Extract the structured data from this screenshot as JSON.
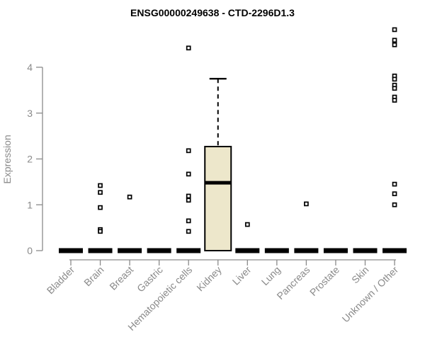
{
  "chart_data": {
    "type": "boxplot",
    "title": "ENSG00000249638 - CTD-2296D1.3",
    "ylabel": "Expression",
    "xlabel": "",
    "yticks": [
      0,
      1,
      2,
      3,
      4
    ],
    "ylim": [
      0,
      5.0
    ],
    "grid": false,
    "legend": null,
    "categories": [
      "Bladder",
      "Brain",
      "Breast",
      "Gastric",
      "Hematopoietic cells",
      "Kidney",
      "Liver",
      "Lung",
      "Pancreas",
      "Prostate",
      "Skin",
      "Unknown / Other"
    ],
    "series": [
      {
        "category": "Bladder",
        "median": 0,
        "q1": 0,
        "q3": 0,
        "whisker_low": 0,
        "whisker_high": 0,
        "outliers": []
      },
      {
        "category": "Brain",
        "median": 0,
        "q1": 0,
        "q3": 0,
        "whisker_low": 0,
        "whisker_high": 0,
        "outliers": [
          1.42,
          1.27,
          0.94,
          0.46,
          0.42
        ]
      },
      {
        "category": "Breast",
        "median": 0,
        "q1": 0,
        "q3": 0,
        "whisker_low": 0,
        "whisker_high": 0,
        "outliers": [
          1.17
        ]
      },
      {
        "category": "Gastric",
        "median": 0,
        "q1": 0,
        "q3": 0,
        "whisker_low": 0,
        "whisker_high": 0,
        "outliers": []
      },
      {
        "category": "Hematopoietic cells",
        "median": 0,
        "q1": 0,
        "q3": 0,
        "whisker_low": 0,
        "whisker_high": 0,
        "outliers": [
          4.42,
          2.18,
          1.67,
          1.19,
          1.1,
          0.65,
          0.42
        ]
      },
      {
        "category": "Kidney",
        "median": 1.48,
        "q1": 0,
        "q3": 2.27,
        "whisker_low": 0,
        "whisker_high": 3.75,
        "outliers": []
      },
      {
        "category": "Liver",
        "median": 0,
        "q1": 0,
        "q3": 0,
        "whisker_low": 0,
        "whisker_high": 0,
        "outliers": [
          0.57
        ]
      },
      {
        "category": "Lung",
        "median": 0,
        "q1": 0,
        "q3": 0,
        "whisker_low": 0,
        "whisker_high": 0,
        "outliers": []
      },
      {
        "category": "Pancreas",
        "median": 0,
        "q1": 0,
        "q3": 0,
        "whisker_low": 0,
        "whisker_high": 0,
        "outliers": [
          1.02
        ]
      },
      {
        "category": "Prostate",
        "median": 0,
        "q1": 0,
        "q3": 0,
        "whisker_low": 0,
        "whisker_high": 0,
        "outliers": []
      },
      {
        "category": "Skin",
        "median": 0,
        "q1": 0,
        "q3": 0,
        "whisker_low": 0,
        "whisker_high": 0,
        "outliers": []
      },
      {
        "category": "Unknown / Other",
        "median": 0,
        "q1": 0,
        "q3": 0,
        "whisker_low": 0,
        "whisker_high": 0,
        "outliers": [
          4.82,
          4.59,
          4.49,
          3.81,
          3.74,
          3.61,
          3.54,
          3.35,
          3.28,
          1.45,
          1.24,
          1.0
        ]
      }
    ],
    "colors": {
      "box_fill": "#EDE7CB",
      "box_stroke": "#000000",
      "bar": "#000000",
      "outlier_stroke": "#000000",
      "outlier_fill": "#ffffff",
      "axis": "#8a8a8a",
      "title": "#000000"
    }
  }
}
